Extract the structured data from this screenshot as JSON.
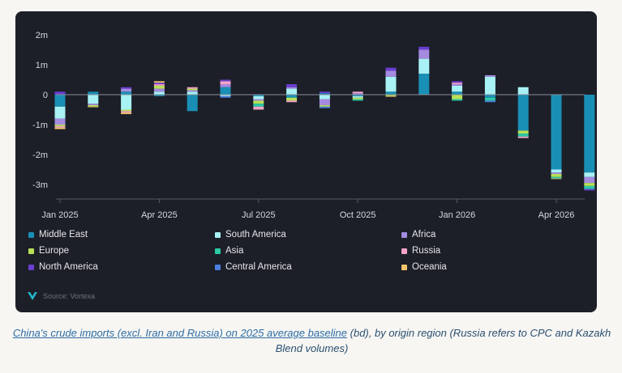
{
  "chart_data": {
    "type": "bar",
    "stacked": true,
    "categories": [
      "Jan 2025",
      "Feb 2025",
      "Mar 2025",
      "Apr 2025",
      "May 2025",
      "Jun 2025",
      "Jul 2025",
      "Aug 2025",
      "Sep 2025",
      "Oct 2025",
      "Nov 2025",
      "Dec 2025",
      "Jan 2026",
      "Feb 2026",
      "Mar 2026",
      "Apr 2026",
      "May 2026"
    ],
    "x_tick_labels": [
      "Jan 2025",
      "Apr 2025",
      "Jul 2025",
      "Oct 2025",
      "Jan 2026",
      "Apr 2026"
    ],
    "y_ticks": [
      2,
      1,
      0,
      -1,
      -2,
      -3
    ],
    "y_tick_labels": [
      "2m",
      "1m",
      "0",
      "-1m",
      "-2m",
      "-3m"
    ],
    "ylim": [
      -3.4,
      2.2
    ],
    "grid": "zero-line only",
    "legend_position": "bottom",
    "series": [
      {
        "name": "Middle East",
        "color": "#1a8fb5",
        "values": [
          -0.4,
          0.1,
          0.1,
          -0.05,
          -0.55,
          0.25,
          -0.05,
          -0.1,
          0.05,
          -0.05,
          0.1,
          0.7,
          0.1,
          -0.1,
          -1.2,
          -2.5,
          -2.6
        ]
      },
      {
        "name": "South America",
        "color": "#a8f1f4",
        "values": [
          -0.4,
          -0.3,
          -0.5,
          0.1,
          0.1,
          -0.05,
          -0.1,
          0.2,
          -0.15,
          -0.05,
          0.5,
          0.5,
          0.2,
          0.6,
          0.25,
          -0.1,
          -0.15
        ]
      },
      {
        "name": "Africa",
        "color": "#a58be0",
        "values": [
          -0.2,
          -0.05,
          0.1,
          0.1,
          0.05,
          0.1,
          -0.05,
          0.05,
          -0.2,
          0.05,
          0.2,
          0.3,
          0.05,
          0.05,
          0.0,
          -0.05,
          -0.2
        ]
      },
      {
        "name": "Europe",
        "color": "#b8e056",
        "values": [
          -0.05,
          -0.05,
          -0.05,
          0.1,
          0.05,
          0.0,
          -0.1,
          -0.1,
          -0.05,
          -0.05,
          -0.05,
          0.0,
          -0.15,
          0.0,
          -0.1,
          -0.1,
          -0.1
        ]
      },
      {
        "name": "Asia",
        "color": "#2bc9a5",
        "values": [
          0.0,
          0.0,
          0.0,
          0.0,
          0.0,
          0.0,
          -0.1,
          0.0,
          0.0,
          -0.05,
          0.0,
          0.0,
          -0.05,
          -0.1,
          -0.1,
          -0.05,
          -0.1
        ]
      },
      {
        "name": "Russia",
        "color": "#f4a3c8",
        "values": [
          -0.05,
          0.0,
          -0.05,
          0.05,
          0.05,
          0.1,
          -0.1,
          -0.05,
          0.0,
          0.05,
          0.0,
          0.0,
          0.05,
          0.0,
          -0.05,
          0.0,
          0.0
        ]
      },
      {
        "name": "North America",
        "color": "#6a3ed0",
        "values": [
          0.1,
          0.0,
          0.05,
          0.05,
          0.0,
          0.05,
          0.0,
          0.1,
          0.05,
          0.0,
          0.1,
          0.1,
          0.05,
          0.0,
          0.0,
          0.0,
          -0.05
        ]
      },
      {
        "name": "Central America",
        "color": "#4a7fe0",
        "values": [
          0.0,
          0.0,
          0.0,
          0.0,
          0.0,
          -0.05,
          0.0,
          0.0,
          -0.05,
          0.0,
          0.0,
          0.0,
          0.0,
          -0.05,
          0.0,
          0.0,
          0.0
        ]
      },
      {
        "name": "Oceania",
        "color": "#f2c46c",
        "values": [
          -0.05,
          -0.02,
          -0.05,
          0.05,
          0.0,
          0.0,
          0.0,
          0.0,
          0.0,
          0.0,
          -0.02,
          0.0,
          0.0,
          0.0,
          0.0,
          -0.02,
          0.0
        ]
      }
    ]
  },
  "source_text": "Source: Vortexa",
  "caption": {
    "link_text": "China's crude imports (excl. Iran and Russia) on 2025 average baseline",
    "rest_text": " (bd), by origin region (Russia refers to CPC and Kazakh Blend volumes)"
  }
}
